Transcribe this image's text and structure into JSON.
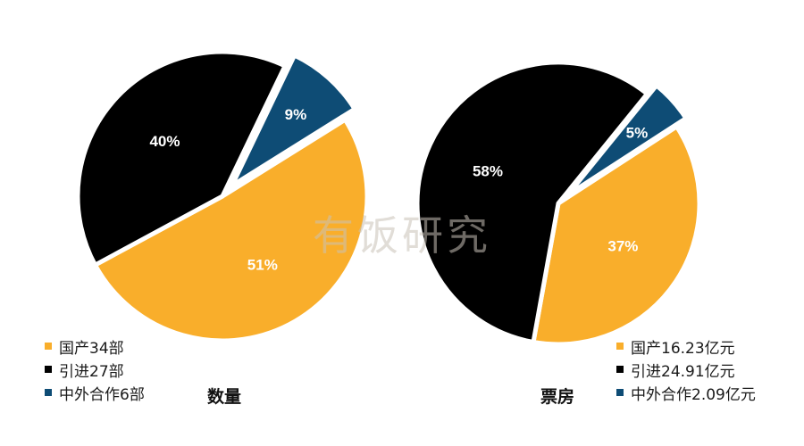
{
  "watermark": "有饭研究",
  "chart_data": [
    {
      "type": "pie",
      "title": "数量",
      "slices": [
        {
          "label": "国产34部",
          "value": 51,
          "pct_label": "51%",
          "color": "#F9AE2B"
        },
        {
          "label": "引进27部",
          "value": 40,
          "pct_label": "40%",
          "color": "#000000"
        },
        {
          "label": "中外合作6部",
          "value": 9,
          "pct_label": "9%",
          "color": "#0E4C75"
        }
      ]
    },
    {
      "type": "pie",
      "title": "票房",
      "slices": [
        {
          "label": "国产16.23亿元",
          "value": 37,
          "pct_label": "37%",
          "color": "#F9AE2B"
        },
        {
          "label": "引进24.91亿元",
          "value": 58,
          "pct_label": "58%",
          "color": "#000000"
        },
        {
          "label": "中外合作2.09亿元",
          "value": 5,
          "pct_label": "5%",
          "color": "#0E4C75"
        }
      ]
    }
  ]
}
